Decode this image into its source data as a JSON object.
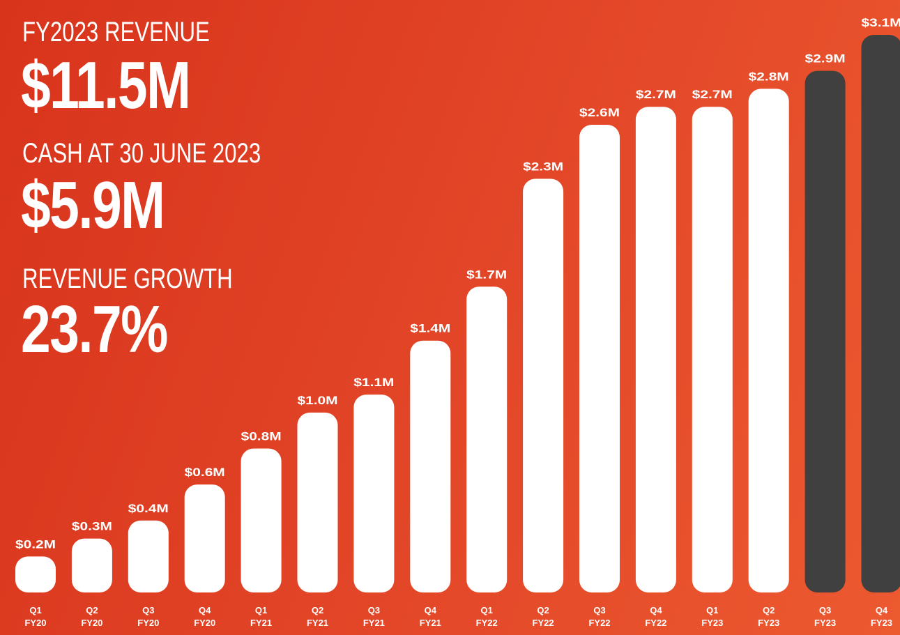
{
  "kpis": [
    {
      "label": "FY2023 REVENUE",
      "value": "$11.5M"
    },
    {
      "label": "CASH AT 30 JUNE 2023",
      "value": "$5.9M"
    },
    {
      "label": "REVENUE GROWTH",
      "value": "23.7%"
    }
  ],
  "chart_data": {
    "type": "bar",
    "categories": [
      "Q1 FY20",
      "Q2 FY20",
      "Q3 FY20",
      "Q4 FY20",
      "Q1 FY21",
      "Q2 FY21",
      "Q3 FY21",
      "Q4 FY21",
      "Q1 FY22",
      "Q2 FY22",
      "Q3 FY22",
      "Q4 FY22",
      "Q1 FY23",
      "Q2 FY23",
      "Q3 FY23",
      "Q4 FY23"
    ],
    "values": [
      0.2,
      0.3,
      0.4,
      0.6,
      0.8,
      1.0,
      1.1,
      1.4,
      1.7,
      2.3,
      2.6,
      2.7,
      2.7,
      2.8,
      2.9,
      3.1
    ],
    "value_labels": [
      "$0.2M",
      "$0.3M",
      "$0.4M",
      "$0.6M",
      "$0.8M",
      "$1.0M",
      "$1.1M",
      "$1.4M",
      "$1.7M",
      "$2.3M",
      "$2.6M",
      "$2.7M",
      "$2.7M",
      "$2.8M",
      "$2.9M",
      "$3.1M"
    ],
    "colors": [
      "#ffffff",
      "#ffffff",
      "#ffffff",
      "#ffffff",
      "#ffffff",
      "#ffffff",
      "#ffffff",
      "#ffffff",
      "#ffffff",
      "#ffffff",
      "#ffffff",
      "#ffffff",
      "#ffffff",
      "#ffffff",
      "#404040",
      "#404040"
    ]
  }
}
